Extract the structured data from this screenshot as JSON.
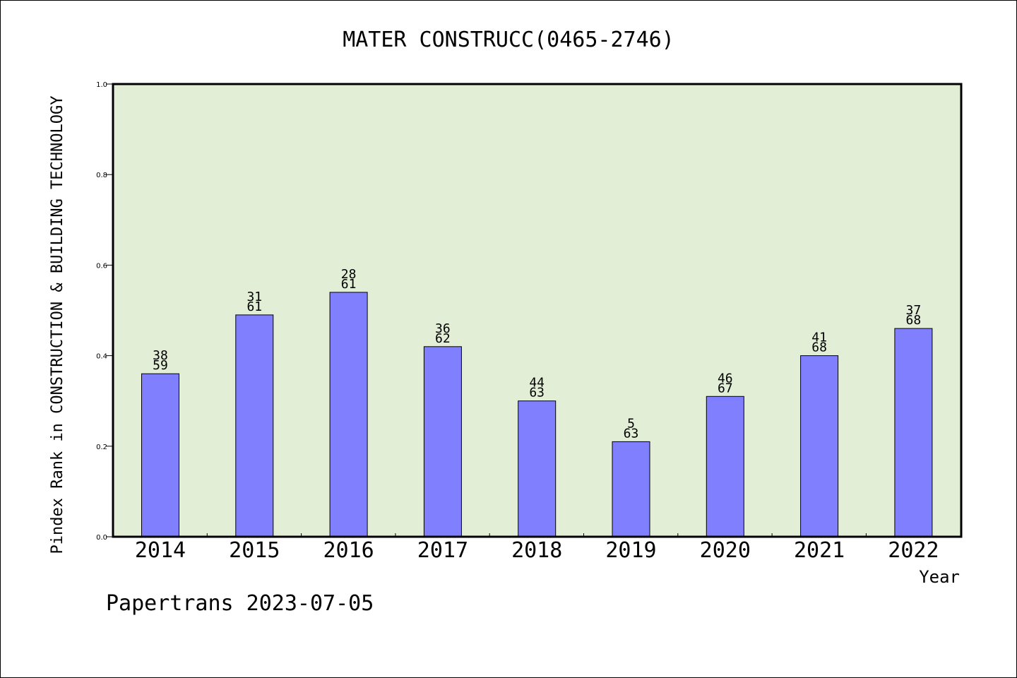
{
  "chart_data": {
    "type": "bar",
    "title": "MATER CONSTRUCC(0465-2746)",
    "xlabel": "Year",
    "ylabel": "Pindex Rank in CONSTRUCTION & BUILDING TECHNOLOGY",
    "ylim": [
      0,
      1.0
    ],
    "yticks": [
      "0.0",
      "0.2",
      "0.4",
      "0.6",
      "0.8",
      "1.0"
    ],
    "categories": [
      "2014",
      "2015",
      "2016",
      "2017",
      "2018",
      "2019",
      "2020",
      "2021",
      "2022"
    ],
    "values": [
      0.36,
      0.49,
      0.54,
      0.42,
      0.3,
      0.21,
      0.31,
      0.4,
      0.46
    ],
    "labels_top": [
      "38",
      "31",
      "28",
      "36",
      "44",
      "5",
      "46",
      "41",
      "37"
    ],
    "labels_bottom": [
      "59",
      "61",
      "61",
      "62",
      "63",
      "63",
      "67",
      "68",
      "68"
    ],
    "grid": false,
    "colors": {
      "plot_bg": "#e2efd6",
      "bar": "#8080ff",
      "bar_edge": "#000000"
    }
  },
  "footer": "Papertrans 2023-07-05"
}
